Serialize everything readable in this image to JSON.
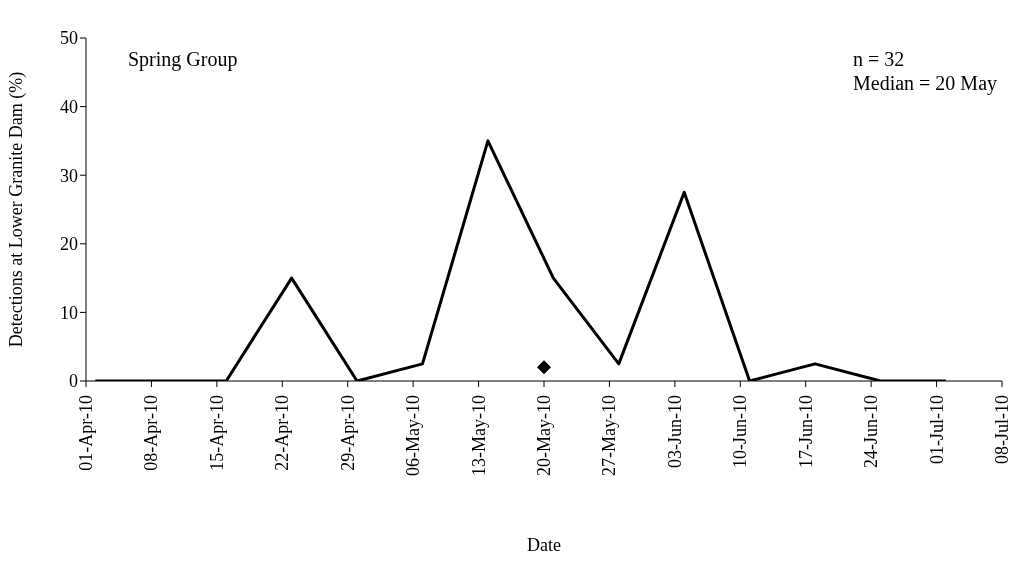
{
  "chart_data": {
    "type": "line",
    "xlabel": "Date",
    "ylabel": "Detections at Lower Granite Dam (%)",
    "annotations": [
      "Spring Group",
      "n = 32",
      "Median = 20 May"
    ],
    "series": [
      {
        "color": "#000000",
        "marker": "none",
        "x": [
          "--04-02",
          "--04-09",
          "--04-16",
          "--04-23",
          "--04-30",
          "--05-07",
          "--05-14",
          "--05-21",
          "--05-28",
          "--06-04",
          "--06-11",
          "--06-18",
          "--06-25",
          "--07-02"
        ],
        "values": [
          0,
          0,
          0,
          15,
          0,
          2.5,
          35,
          15,
          2.5,
          27.5,
          0,
          2.5,
          0,
          0
        ]
      },
      {
        "type": "scatter",
        "color": "#000000",
        "marker": "diamond",
        "x": [
          "--05-20"
        ],
        "values": [
          2
        ]
      }
    ],
    "xlim": [
      "--04-01",
      "--07-08"
    ],
    "xticks": [
      {
        "value": "--04-01",
        "label": "01-Apr-10"
      },
      {
        "value": "--04-08",
        "label": "08-Apr-10"
      },
      {
        "value": "--04-15",
        "label": "15-Apr-10"
      },
      {
        "value": "--04-22",
        "label": "22-Apr-10"
      },
      {
        "value": "--04-29",
        "label": "29-Apr-10"
      },
      {
        "value": "--05-06",
        "label": "06-May-10"
      },
      {
        "value": "--05-13",
        "label": "13-May-10"
      },
      {
        "value": "--05-20",
        "label": "20-May-10"
      },
      {
        "value": "--05-27",
        "label": "27-May-10"
      },
      {
        "value": "--06-03",
        "label": "03-Jun-10"
      },
      {
        "value": "--06-10",
        "label": "10-Jun-10"
      },
      {
        "value": "--06-17",
        "label": "17-Jun-10"
      },
      {
        "value": "--06-24",
        "label": "24-Jun-10"
      },
      {
        "value": "--07-01",
        "label": "01-Jul-10"
      },
      {
        "value": "--07-08",
        "label": "08-Jul-10"
      }
    ],
    "ylim": [
      0,
      50
    ],
    "yticks": [
      0,
      10,
      20,
      30,
      40,
      50
    ],
    "grid": false,
    "legend": false
  }
}
